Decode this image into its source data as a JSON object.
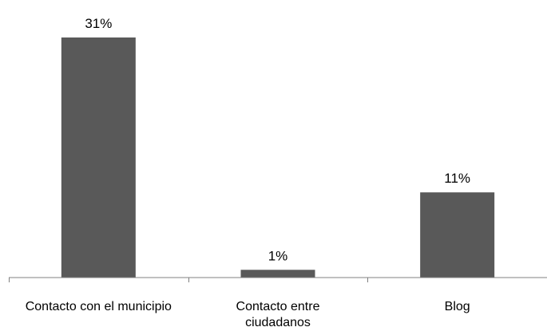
{
  "chart_data": {
    "type": "bar",
    "categories": [
      [
        "Contacto con el municipio"
      ],
      [
        "Contacto entre",
        "ciudadanos"
      ],
      [
        "Blog"
      ]
    ],
    "values": [
      31,
      1,
      11
    ],
    "data_labels": [
      "31%",
      "1%",
      "11%"
    ],
    "ylim": [
      0,
      31
    ],
    "grid": false,
    "legend": "none",
    "colors": {
      "bar": "#595959",
      "axis": "#808080",
      "text": "#000000"
    }
  }
}
